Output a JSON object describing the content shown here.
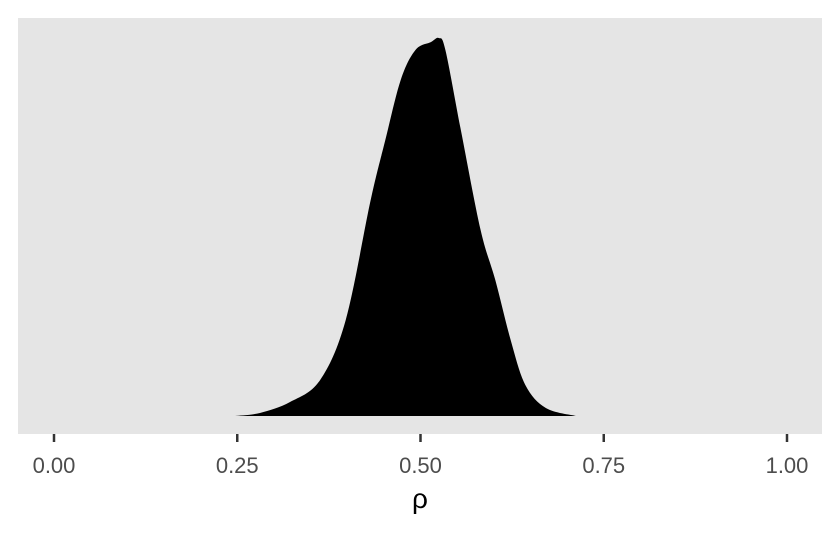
{
  "chart_data": {
    "type": "area",
    "title": "",
    "xlabel": "ρ",
    "ylabel": "",
    "xlim": [
      -0.05,
      1.05
    ],
    "ylim": [
      0,
      1.05
    ],
    "x_ticks": [
      "0.00",
      "0.25",
      "0.50",
      "0.75",
      "1.00"
    ],
    "y_ticks": [],
    "grid": false,
    "panel_background": "#e5e5e5",
    "fill_color": "#000000",
    "x": [
      0.247,
      0.281,
      0.322,
      0.363,
      0.398,
      0.432,
      0.452,
      0.473,
      0.493,
      0.514,
      0.525,
      0.534,
      0.555,
      0.582,
      0.602,
      0.623,
      0.643,
      0.671,
      0.712
    ],
    "y": [
      0,
      0.008,
      0.037,
      0.095,
      0.254,
      0.571,
      0.73,
      0.889,
      0.968,
      0.989,
      1.0,
      0.968,
      0.757,
      0.492,
      0.36,
      0.201,
      0.082,
      0.021,
      0
    ]
  }
}
